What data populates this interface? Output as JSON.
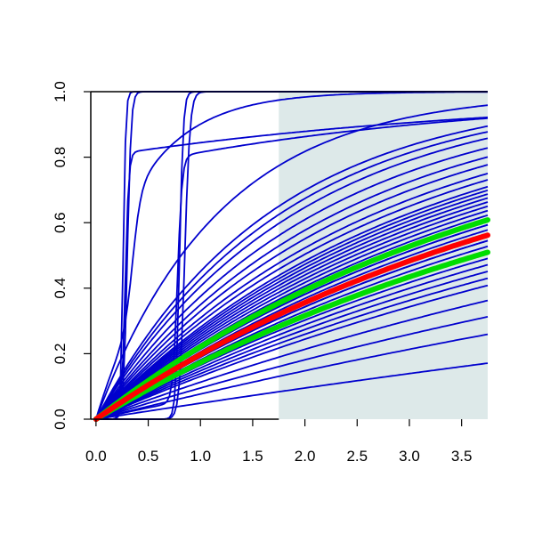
{
  "chart_data": {
    "type": "line",
    "title": "",
    "xlabel": "",
    "ylabel": "",
    "xlim": [
      -0.05,
      3.75
    ],
    "ylim": [
      0,
      1
    ],
    "x_ticks": [
      "0.0",
      "0.5",
      "1.0",
      "1.5",
      "2.0",
      "2.5",
      "3.0",
      "3.5"
    ],
    "y_ticks": [
      "0.0",
      "0.2",
      "0.4",
      "0.6",
      "0.8",
      "1.0"
    ],
    "grid": false,
    "legend": "none",
    "shaded_region": {
      "x_from": 1.75,
      "x_to": 3.75,
      "color": "#dde9e9"
    },
    "colors": {
      "curves": "#0000cd",
      "central": "#ff0000",
      "bounds": "#00dd00",
      "axes": "#000000"
    },
    "series_groups": {
      "exponential_rates": [
        0.05,
        0.08,
        0.1,
        0.12,
        0.14,
        0.15,
        0.16,
        0.17,
        0.18,
        0.19,
        0.2,
        0.21,
        0.21,
        0.22,
        0.23,
        0.24,
        0.24,
        0.25,
        0.26,
        0.27,
        0.28,
        0.29,
        0.3,
        0.31,
        0.32,
        0.33,
        0.35,
        0.37,
        0.4,
        0.43,
        0.47,
        0.52,
        0.56,
        0.6,
        0.85
      ],
      "steep_sigmoids": [
        {
          "center": 0.26,
          "steepness": 80
        },
        {
          "center": 0.3,
          "steepness": 55
        },
        {
          "center": 0.8,
          "steepness": 55
        },
        {
          "center": 0.85,
          "steepness": 40
        }
      ],
      "blended_curves": [
        {
          "rate": 0.3,
          "center": 0.78,
          "steepness": 45,
          "weight": 0.75
        },
        {
          "rate": 0.25,
          "center": 0.28,
          "steepness": 60,
          "weight": 0.8
        },
        {
          "rate": 1.8,
          "center": 0.35,
          "steepness": 25,
          "weight": 0.4
        }
      ],
      "central_rate": 0.22,
      "bound_rates": [
        0.19,
        0.25
      ]
    }
  }
}
